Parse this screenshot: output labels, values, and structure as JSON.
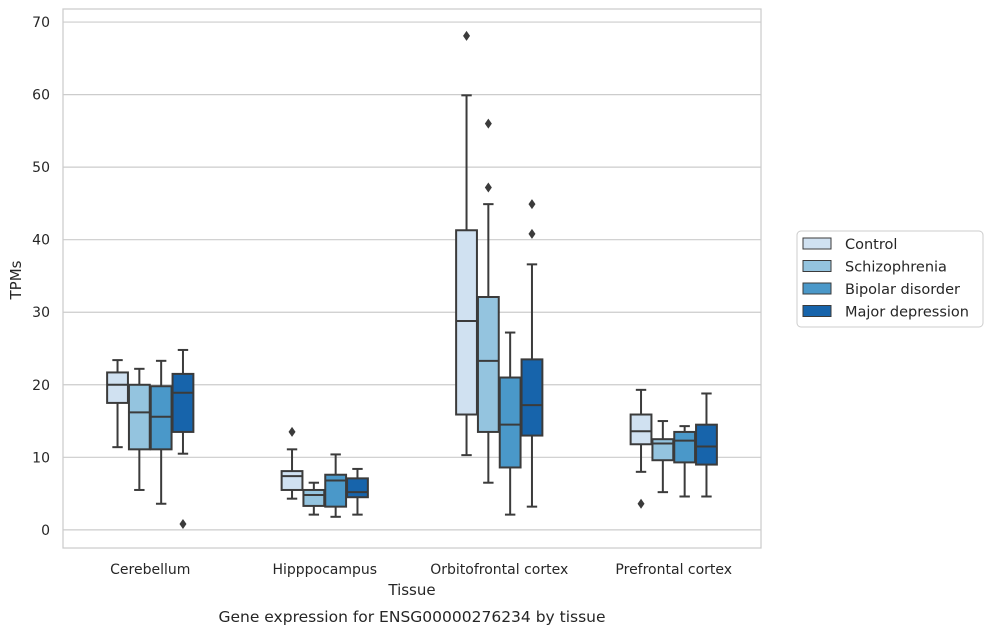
{
  "chart_data": {
    "type": "box",
    "xlabel": "Tissue",
    "ylabel": "TPMs",
    "caption": "Gene expression for ENSG00000276234 by tissue",
    "ylim": [
      -2.5,
      71.8
    ],
    "yticks": [
      0,
      10,
      20,
      30,
      40,
      50,
      60,
      70
    ],
    "grid": "horizontal",
    "legend_position": "right",
    "categories": [
      "Cerebellum",
      "Hipppocampus",
      "Orbitofrontal cortex",
      "Prefrontal cortex"
    ],
    "series": [
      {
        "name": "Control",
        "color": "#d0e1f1",
        "boxes": [
          {
            "whisker_low": 11.4,
            "q1": 17.5,
            "median": 20.0,
            "q3": 21.7,
            "whisker_high": 23.4,
            "outliers": []
          },
          {
            "whisker_low": 4.3,
            "q1": 5.5,
            "median": 7.4,
            "q3": 8.1,
            "whisker_high": 11.1,
            "outliers": [
              13.5
            ]
          },
          {
            "whisker_low": 10.3,
            "q1": 15.9,
            "median": 28.8,
            "q3": 41.3,
            "whisker_high": 59.9,
            "outliers": [
              68.1
            ]
          },
          {
            "whisker_low": 8.0,
            "q1": 11.8,
            "median": 13.6,
            "q3": 15.9,
            "whisker_high": 19.3,
            "outliers": [
              3.6
            ]
          }
        ]
      },
      {
        "name": "Schizophrenia",
        "color": "#94c4df",
        "boxes": [
          {
            "whisker_low": 5.5,
            "q1": 11.1,
            "median": 16.2,
            "q3": 20.0,
            "whisker_high": 22.2,
            "outliers": []
          },
          {
            "whisker_low": 2.1,
            "q1": 3.3,
            "median": 4.8,
            "q3": 5.5,
            "whisker_high": 6.5,
            "outliers": []
          },
          {
            "whisker_low": 6.5,
            "q1": 13.5,
            "median": 23.3,
            "q3": 32.1,
            "whisker_high": 44.9,
            "outliers": [
              56.0,
              47.2
            ]
          },
          {
            "whisker_low": 5.2,
            "q1": 9.6,
            "median": 11.9,
            "q3": 12.5,
            "whisker_high": 15.0,
            "outliers": []
          }
        ]
      },
      {
        "name": "Bipolar disorder",
        "color": "#4a98c9",
        "boxes": [
          {
            "whisker_low": 3.6,
            "q1": 11.1,
            "median": 15.6,
            "q3": 19.8,
            "whisker_high": 23.3,
            "outliers": []
          },
          {
            "whisker_low": 1.8,
            "q1": 3.2,
            "median": 6.8,
            "q3": 7.6,
            "whisker_high": 10.4,
            "outliers": []
          },
          {
            "whisker_low": 2.1,
            "q1": 8.6,
            "median": 14.5,
            "q3": 21.0,
            "whisker_high": 27.2,
            "outliers": []
          },
          {
            "whisker_low": 4.6,
            "q1": 9.3,
            "median": 12.3,
            "q3": 13.5,
            "whisker_high": 14.3,
            "outliers": []
          }
        ]
      },
      {
        "name": "Major depression",
        "color": "#1764ab",
        "boxes": [
          {
            "whisker_low": 10.5,
            "q1": 13.5,
            "median": 18.9,
            "q3": 21.5,
            "whisker_high": 24.8,
            "outliers": [
              0.8
            ]
          },
          {
            "whisker_low": 2.1,
            "q1": 4.5,
            "median": 5.2,
            "q3": 7.1,
            "whisker_high": 8.4,
            "outliers": []
          },
          {
            "whisker_low": 3.2,
            "q1": 13.0,
            "median": 17.2,
            "q3": 23.5,
            "whisker_high": 36.6,
            "outliers": [
              44.9,
              40.8
            ]
          },
          {
            "whisker_low": 4.6,
            "q1": 9.0,
            "median": 11.5,
            "q3": 14.5,
            "whisker_high": 18.8,
            "outliers": []
          }
        ]
      }
    ]
  }
}
